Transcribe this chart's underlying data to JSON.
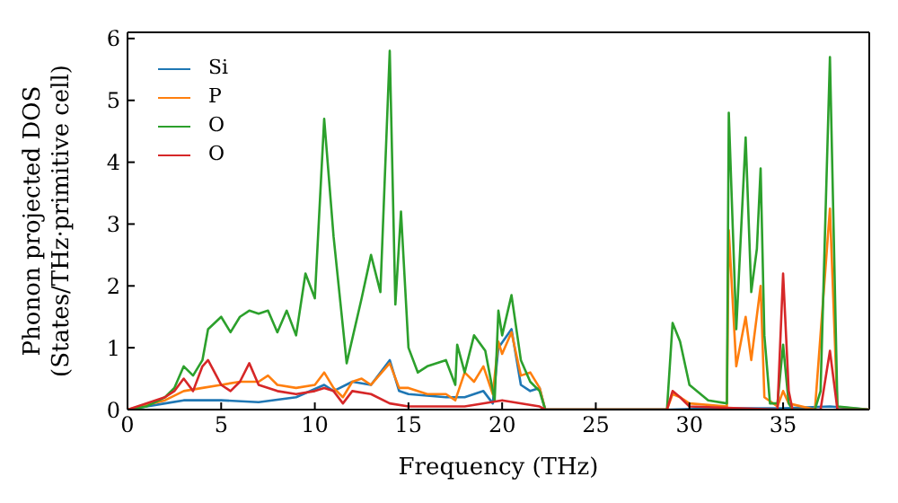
{
  "chart_data": {
    "type": "line",
    "xlabel": "Frequency (THz)",
    "ylabel": "Phonon projected DOS (States/THz·primitive cell)",
    "xlim": [
      0,
      39.6
    ],
    "ylim": [
      0,
      6.1
    ],
    "xticks": [
      0,
      5,
      10,
      15,
      20,
      25,
      30,
      35
    ],
    "yticks": [
      0,
      1,
      2,
      3,
      4,
      5,
      6
    ],
    "grid": false,
    "legend": "top left",
    "marker": "none",
    "line_style": "solid",
    "series": [
      {
        "name": "Si",
        "color": "#1f77b4",
        "x": [
          0,
          2,
          3,
          5,
          7,
          9,
          10.5,
          11,
          12,
          13,
          14,
          14.5,
          15,
          17,
          18,
          19,
          19.5,
          19.8,
          20.5,
          21,
          21.5,
          22,
          22.3,
          29,
          32,
          35,
          37.5,
          39.6
        ],
        "values": [
          0,
          0.1,
          0.15,
          0.15,
          0.12,
          0.2,
          0.4,
          0.3,
          0.45,
          0.4,
          0.8,
          0.3,
          0.25,
          0.2,
          0.2,
          0.3,
          0.1,
          1.0,
          1.3,
          0.4,
          0.3,
          0.35,
          0,
          0,
          0.02,
          0.02,
          0.05,
          0
        ]
      },
      {
        "name": "P",
        "color": "#ff7f0e",
        "x": [
          0,
          2,
          3,
          4,
          5,
          6,
          7,
          7.5,
          8,
          9,
          10,
          10.5,
          11,
          11.5,
          12,
          12.5,
          13,
          14,
          14.5,
          15,
          16,
          17,
          17.5,
          18,
          18.5,
          19,
          19.5,
          19.8,
          20,
          20.5,
          21,
          21.5,
          22,
          22.3,
          28.8,
          29.1,
          29.5,
          30,
          32,
          32.1,
          32.5,
          33,
          33.3,
          33.8,
          34,
          34.7,
          35,
          35.3,
          36.7,
          37.5,
          37.9,
          39.6
        ],
        "values": [
          0,
          0.15,
          0.3,
          0.35,
          0.4,
          0.45,
          0.45,
          0.55,
          0.4,
          0.35,
          0.4,
          0.6,
          0.35,
          0.2,
          0.45,
          0.5,
          0.4,
          0.75,
          0.35,
          0.35,
          0.25,
          0.25,
          0.15,
          0.6,
          0.45,
          0.7,
          0.25,
          1.1,
          0.9,
          1.25,
          0.55,
          0.6,
          0.35,
          0,
          0,
          0.25,
          0.2,
          0.1,
          0.05,
          2.9,
          0.7,
          1.5,
          0.8,
          2.0,
          0.2,
          0.05,
          0.3,
          0.1,
          0,
          3.25,
          0,
          0
        ]
      },
      {
        "name": "O",
        "color": "#2ca02c",
        "x": [
          0,
          1,
          2,
          2.5,
          3,
          3.5,
          4,
          4.3,
          5,
          5.5,
          6,
          6.5,
          7,
          7.5,
          8,
          8.5,
          9,
          9.5,
          10,
          10.5,
          11,
          11.7,
          12.5,
          13,
          13.5,
          14,
          14.3,
          14.6,
          15,
          15.5,
          16,
          17,
          17.5,
          17.6,
          18,
          18.5,
          19.1,
          19.6,
          19.8,
          20,
          20.5,
          21,
          21.5,
          22,
          22.3,
          28.8,
          29.1,
          29.5,
          30,
          31,
          32,
          32.1,
          32.5,
          33,
          33.3,
          33.6,
          33.8,
          34,
          34.3,
          34.7,
          35,
          35.3,
          35.5,
          36.7,
          37,
          37.5,
          37.9,
          39.6
        ],
        "values": [
          0,
          0.05,
          0.2,
          0.35,
          0.7,
          0.55,
          0.8,
          1.3,
          1.5,
          1.25,
          1.5,
          1.6,
          1.55,
          1.6,
          1.25,
          1.6,
          1.2,
          2.2,
          1.8,
          4.7,
          2.8,
          0.75,
          1.8,
          2.5,
          1.9,
          5.8,
          1.7,
          3.2,
          1.0,
          0.6,
          0.7,
          0.8,
          0.4,
          1.05,
          0.6,
          1.2,
          0.95,
          0.15,
          1.6,
          1.2,
          1.85,
          0.8,
          0.45,
          0.3,
          0,
          0,
          1.4,
          1.1,
          0.4,
          0.15,
          0.1,
          4.8,
          1.3,
          4.4,
          1.9,
          2.6,
          3.9,
          1.2,
          0.1,
          0.1,
          1.05,
          0.1,
          0,
          0,
          0.3,
          5.7,
          0.05,
          0
        ]
      },
      {
        "name": "O",
        "color": "#d62728",
        "x": [
          0,
          2,
          2.5,
          3,
          3.5,
          4,
          4.3,
          5,
          5.5,
          6,
          6.5,
          7,
          8,
          9,
          10,
          10.5,
          11,
          11.5,
          12,
          13,
          14,
          15,
          18,
          20,
          22,
          22.3,
          28.8,
          29.1,
          29.5,
          30,
          34.7,
          35,
          35.3,
          35.5,
          37,
          37.5,
          37.9,
          39.6
        ],
        "values": [
          0,
          0.2,
          0.3,
          0.5,
          0.3,
          0.7,
          0.8,
          0.4,
          0.3,
          0.45,
          0.75,
          0.4,
          0.3,
          0.25,
          0.3,
          0.35,
          0.3,
          0.1,
          0.3,
          0.25,
          0.1,
          0.05,
          0.05,
          0.15,
          0.05,
          0,
          0,
          0.3,
          0.2,
          0.05,
          0,
          2.2,
          0.3,
          0,
          0,
          0.95,
          0,
          0
        ]
      }
    ]
  }
}
